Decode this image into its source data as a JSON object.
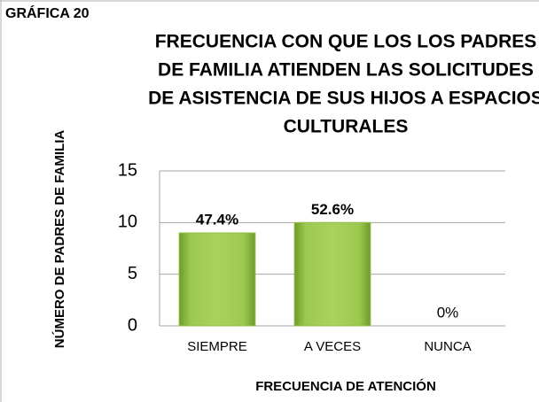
{
  "chart_data": {
    "type": "bar",
    "header": "GRÁFICA 20",
    "title": [
      "FRECUENCIA CON QUE LOS LOS PADRES",
      "DE FAMILIA ATIENDEN LAS SOLICITUDES",
      "DE ASISTENCIA DE SUS HIJOS A ESPACIOS",
      "CULTURALES"
    ],
    "y_label": "NÚMERO DE PADRES DE FAMILIA",
    "x_label": "FRECUENCIA DE ATENCIÓN",
    "categories": [
      "SIEMPRE",
      "A VECES",
      "NUNCA"
    ],
    "values": [
      9,
      10,
      0
    ],
    "value_labels": [
      "47.4%",
      "52.6%",
      "0%"
    ],
    "color": "#92c04a",
    "ylim": [
      0,
      15
    ],
    "yticks": [
      0,
      5,
      10,
      15
    ],
    "grid": true
  }
}
